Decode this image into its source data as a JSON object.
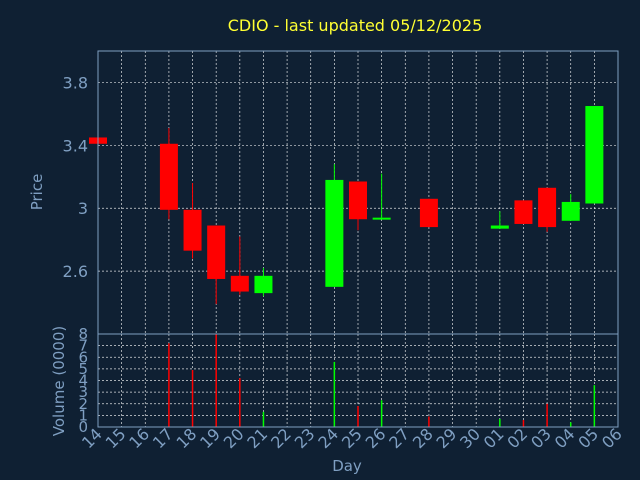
{
  "chart_data": {
    "type": "candlestick",
    "title": "CDIO - last updated 05/12/2025",
    "xlabel": "Day",
    "price_panel": {
      "ylabel": "Price",
      "ylim": [
        2.2,
        4.0
      ],
      "yticks": [
        2.6,
        3.0,
        3.4,
        3.8
      ],
      "ytick_labels": [
        "2.6",
        "3",
        "3.4",
        "3.8"
      ],
      "grid": true
    },
    "volume_panel": {
      "ylabel": "Volume (0000)",
      "ylim": [
        0,
        8
      ],
      "yticks": [
        0,
        1,
        2,
        3,
        4,
        5,
        6,
        7,
        8
      ],
      "ytick_labels": [
        "0",
        "1",
        "2",
        "3",
        "4",
        "5",
        "6",
        "7",
        "8"
      ],
      "grid": true
    },
    "x_labels": [
      "14",
      "15",
      "16",
      "17",
      "18",
      "19",
      "20",
      "21",
      "22",
      "23",
      "24",
      "25",
      "26",
      "27",
      "28",
      "29",
      "30",
      "01",
      "02",
      "03",
      "04",
      "05",
      "06"
    ],
    "candles": [
      {
        "x": "14",
        "open": 3.45,
        "close": 3.41,
        "high": 3.45,
        "low": 3.41,
        "volume": 0
      },
      {
        "x": "17",
        "open": 3.41,
        "close": 2.99,
        "high": 3.51,
        "low": 2.93,
        "volume": 7.2
      },
      {
        "x": "18",
        "open": 2.99,
        "close": 2.73,
        "high": 3.16,
        "low": 2.68,
        "volume": 4.9
      },
      {
        "x": "19",
        "open": 2.89,
        "close": 2.55,
        "high": 2.89,
        "low": 2.39,
        "volume": 8.0
      },
      {
        "x": "20",
        "open": 2.57,
        "close": 2.47,
        "high": 2.82,
        "low": 2.45,
        "volume": 4.2
      },
      {
        "x": "21",
        "open": 2.46,
        "close": 2.57,
        "high": 2.62,
        "low": 2.44,
        "volume": 1.3
      },
      {
        "x": "24",
        "open": 2.5,
        "close": 3.18,
        "high": 3.28,
        "low": 2.5,
        "volume": 5.6
      },
      {
        "x": "25",
        "open": 3.17,
        "close": 2.93,
        "high": 3.17,
        "low": 2.86,
        "volume": 1.8
      },
      {
        "x": "26",
        "open": 2.93,
        "close": 2.94,
        "high": 3.22,
        "low": 2.93,
        "volume": 2.3
      },
      {
        "x": "28",
        "open": 3.06,
        "close": 2.88,
        "high": 3.06,
        "low": 2.88,
        "volume": 0.9
      },
      {
        "x": "01",
        "open": 2.87,
        "close": 2.89,
        "high": 2.98,
        "low": 2.87,
        "volume": 0.7
      },
      {
        "x": "02",
        "open": 3.05,
        "close": 2.9,
        "high": 3.05,
        "low": 2.9,
        "volume": 0.6
      },
      {
        "x": "03",
        "open": 3.13,
        "close": 2.88,
        "high": 3.13,
        "low": 2.85,
        "volume": 2.0
      },
      {
        "x": "04",
        "open": 2.92,
        "close": 3.04,
        "high": 3.09,
        "low": 2.92,
        "volume": 0.4
      },
      {
        "x": "05",
        "open": 3.03,
        "close": 3.65,
        "high": 3.65,
        "low": 3.03,
        "volume": 3.6
      }
    ],
    "colors": {
      "up": "#00ff00",
      "down": "#ff0000",
      "background": "#0f2033",
      "grid": "#ffffff",
      "axis_text": "#7f9fc2",
      "title": "#ffff33",
      "frame": "#7f9fc2"
    }
  }
}
